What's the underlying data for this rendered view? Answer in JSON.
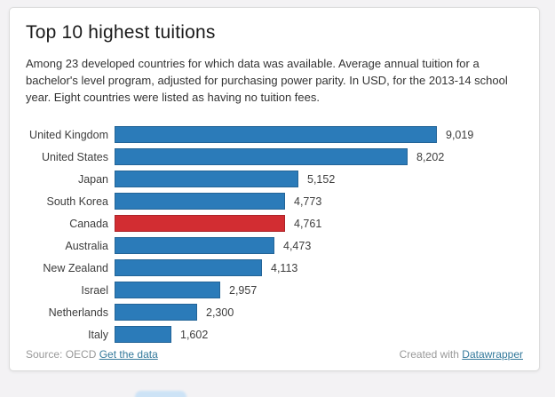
{
  "page": {
    "background_color": "#f3f2f4",
    "card_background": "#ffffff",
    "card_border_color": "#dcdcdc"
  },
  "header": {
    "title": "Top 10 highest tuitions",
    "description": "Among 23 developed countries for which data was available. Average annual tuition for a bachelor's level program, adjusted for purchasing power parity. In USD, for the 2013-14 school year. Eight countries were listed as having no tuition fees."
  },
  "chart_data": {
    "type": "bar",
    "orientation": "horizontal",
    "title": "Top 10 highest tuitions",
    "unit": "USD",
    "categories": [
      "United Kingdom",
      "United States",
      "Japan",
      "South Korea",
      "Canada",
      "Australia",
      "New Zealand",
      "Israel",
      "Netherlands",
      "Italy"
    ],
    "values": [
      9019,
      8202,
      5152,
      4773,
      4761,
      4473,
      4113,
      2957,
      2300,
      1602
    ],
    "values_formatted": [
      "9,019",
      "8,202",
      "5,152",
      "4,773",
      "4,761",
      "4,473",
      "4,113",
      "2,957",
      "2,300",
      "1,602"
    ],
    "xlim": [
      0,
      9019
    ],
    "grid": false,
    "value_labels": true,
    "bar_color": "#2b7bb9",
    "highlight_category": "Canada",
    "highlight_color": "#d22d32",
    "label_color": "#3d3d3d"
  },
  "footer": {
    "source_label": "Source: OECD",
    "source_link": "Get the data",
    "credit_label": "Created with",
    "credit_link": "Datawrapper",
    "link_color": "#33799b"
  }
}
